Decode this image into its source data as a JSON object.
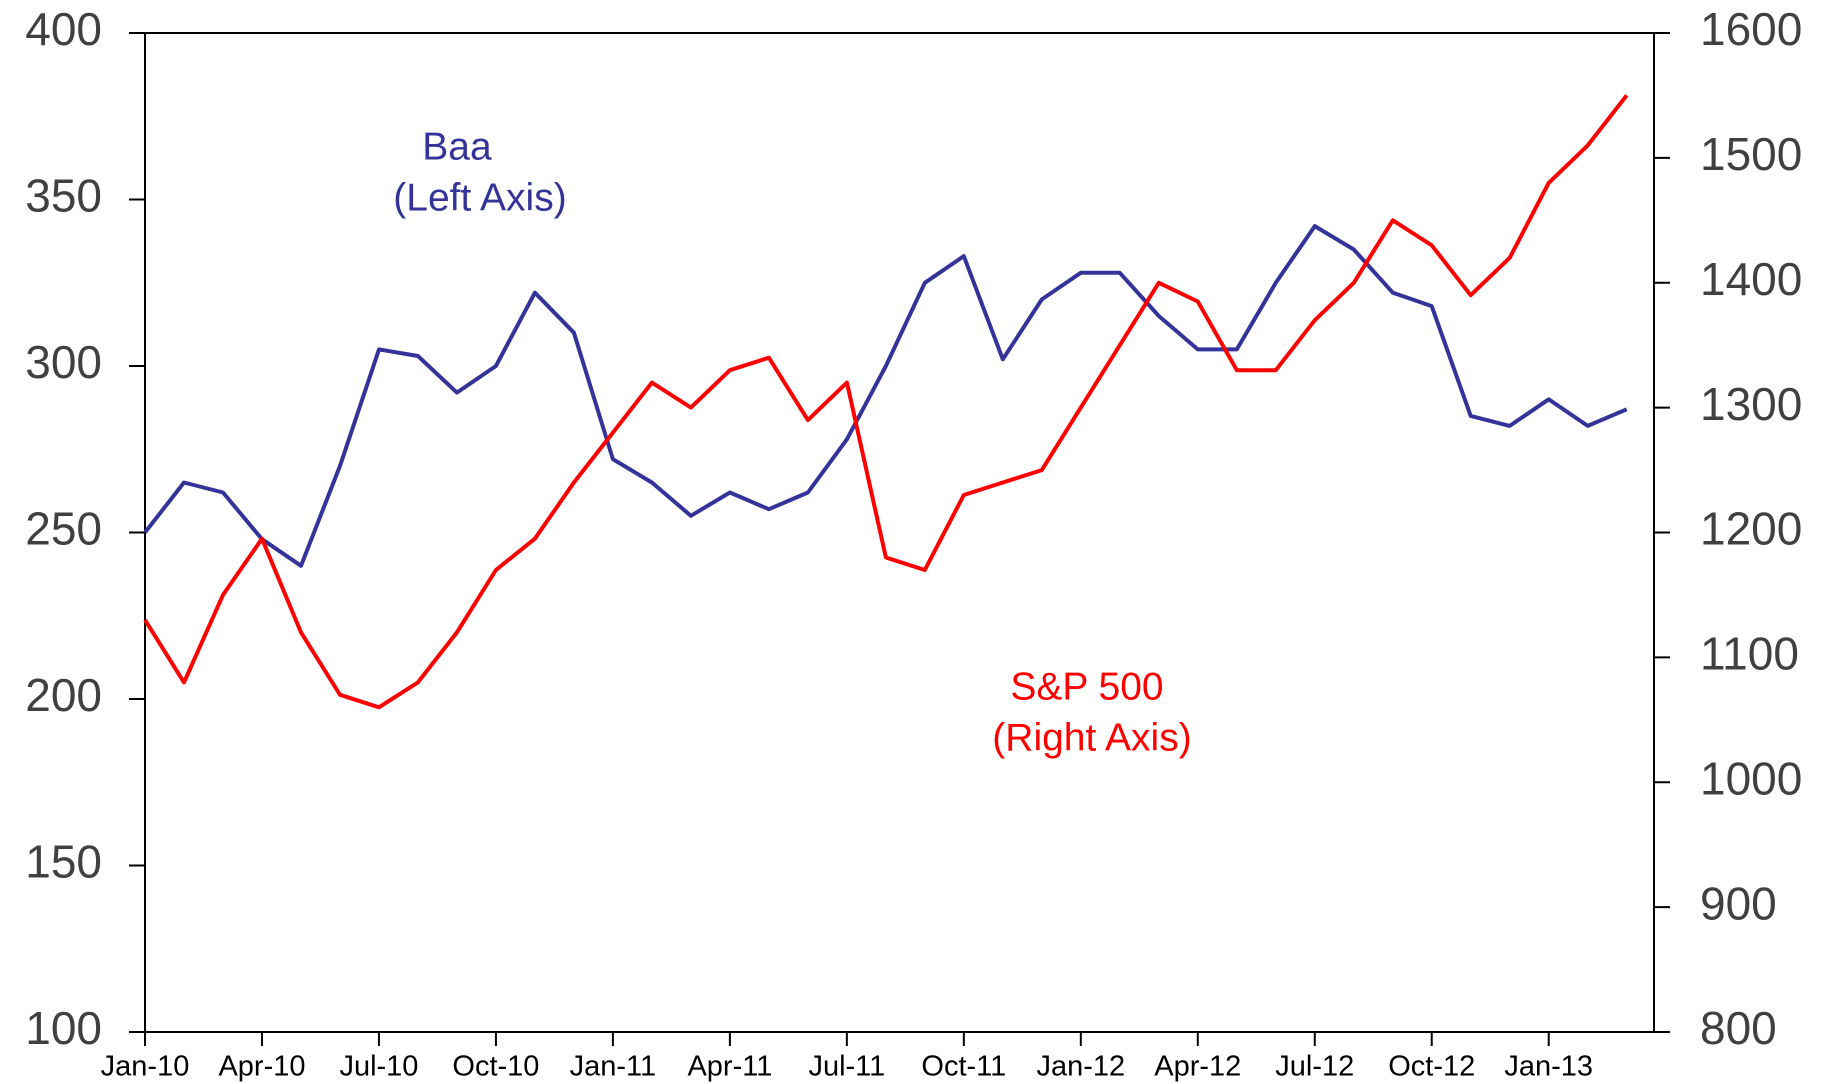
{
  "chart_data": {
    "type": "line",
    "categories": [
      "Jan-10",
      null,
      null,
      "Apr-10",
      null,
      null,
      "Jul-10",
      null,
      null,
      "Oct-10",
      null,
      null,
      "Jan-11",
      null,
      null,
      "Apr-11",
      null,
      null,
      "Jul-11",
      null,
      null,
      "Oct-11",
      null,
      null,
      "Jan-12",
      null,
      null,
      "Apr-12",
      null,
      null,
      "Jul-12",
      null,
      null,
      "Oct-12",
      null,
      null,
      "Jan-13",
      null,
      null
    ],
    "series": [
      {
        "name": "Baa",
        "color": "#333399",
        "axis": "y",
        "values": [
          250,
          265,
          262,
          248,
          240,
          270,
          305,
          303,
          292,
          300,
          322,
          310,
          272,
          265,
          255,
          262,
          257,
          262,
          278,
          300,
          325,
          333,
          302,
          320,
          328,
          328,
          315,
          305,
          305,
          325,
          342,
          335,
          322,
          318,
          285,
          282,
          290,
          282,
          287
        ]
      },
      {
        "name": "S&P 500",
        "color": "#ff0000",
        "axis": "y2",
        "values": [
          1130,
          1080,
          1150,
          1195,
          1120,
          1070,
          1060,
          1080,
          1120,
          1170,
          1195,
          1240,
          1280,
          1320,
          1300,
          1330,
          1340,
          1290,
          1320,
          1180,
          1170,
          1230,
          1240,
          1250,
          1300,
          1350,
          1400,
          1385,
          1330,
          1330,
          1370,
          1400,
          1450,
          1430,
          1390,
          1420,
          1480,
          1510,
          1550
        ]
      }
    ],
    "annotations": [
      {
        "text": "(Left Axis)",
        "series": 0
      },
      {
        "text": "(Right Axis)",
        "series": 1
      }
    ],
    "ylim": [
      100,
      400
    ],
    "yticks": [
      100,
      150,
      200,
      250,
      300,
      350,
      400
    ],
    "y2lim": [
      800,
      1600
    ],
    "y2ticks": [
      800,
      900,
      1000,
      1100,
      1200,
      1300,
      1400,
      1500,
      1600
    ]
  }
}
